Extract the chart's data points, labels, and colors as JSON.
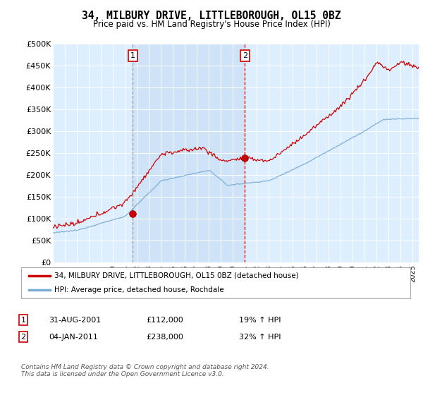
{
  "title1": "34, MILBURY DRIVE, LITTLEBOROUGH, OL15 0BZ",
  "title2": "Price paid vs. HM Land Registry's House Price Index (HPI)",
  "bg_color": "#ddeeff",
  "shade_color": "#c8dff5",
  "grid_color": "#ffffff",
  "hpi_color": "#7aadd4",
  "price_color": "#cc0000",
  "vline1_color": "#999999",
  "vline1_style": "--",
  "vline2_color": "#cc0000",
  "vline2_style": "--",
  "ylim": [
    0,
    500000
  ],
  "yticks": [
    0,
    50000,
    100000,
    150000,
    200000,
    250000,
    300000,
    350000,
    400000,
    450000,
    500000
  ],
  "ytick_labels": [
    "£0",
    "£50K",
    "£100K",
    "£150K",
    "£200K",
    "£250K",
    "£300K",
    "£350K",
    "£400K",
    "£450K",
    "£500K"
  ],
  "sale1_date": 2001.66,
  "sale1_price": 112000,
  "sale1_label": "1",
  "sale2_date": 2011.01,
  "sale2_price": 238000,
  "sale2_label": "2",
  "legend_line1": "34, MILBURY DRIVE, LITTLEBOROUGH, OL15 0BZ (detached house)",
  "legend_line2": "HPI: Average price, detached house, Rochdale",
  "table_row1_num": "1",
  "table_row1_date": "31-AUG-2001",
  "table_row1_price": "£112,000",
  "table_row1_hpi": "19% ↑ HPI",
  "table_row2_num": "2",
  "table_row2_date": "04-JAN-2011",
  "table_row2_price": "£238,000",
  "table_row2_hpi": "32% ↑ HPI",
  "footer": "Contains HM Land Registry data © Crown copyright and database right 2024.\nThis data is licensed under the Open Government Licence v3.0.",
  "xlim_start": 1995.0,
  "xlim_end": 2025.5
}
